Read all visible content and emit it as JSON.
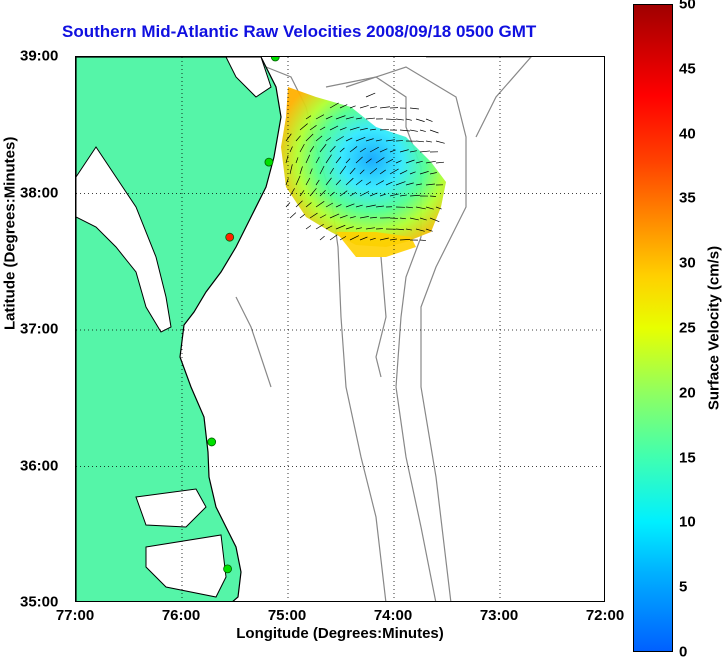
{
  "title": "Southern Mid-Atlantic Raw Velocities 2008/09/18 0500 GMT",
  "xlabel": "Longitude (Degrees:Minutes)",
  "ylabel": "Latitude (Degrees:Minutes)",
  "colorbar": {
    "label": "Surface Velocity (cm/s)",
    "ticks": [
      "0",
      "5",
      "10",
      "15",
      "20",
      "25",
      "30",
      "35",
      "40",
      "45",
      "50"
    ],
    "range": [
      0,
      50
    ]
  },
  "colors": {
    "land": "#55f5a8",
    "title": "#1010e0",
    "coast": "#000000",
    "bathymetry": "#888888",
    "station": "#00e000",
    "station_alert": "#ff2000"
  },
  "chart_data": {
    "type": "map",
    "x_ticks": [
      "77:00",
      "76:00",
      "75:00",
      "74:00",
      "73:00",
      "72:00"
    ],
    "y_ticks": [
      "39:00",
      "38:00",
      "37:00",
      "36:00",
      "35:00"
    ],
    "xlim": [
      -77,
      -72
    ],
    "ylim": [
      35,
      39
    ],
    "grid": "dotted",
    "stations": [
      {
        "lon": -75.12,
        "lat": 39.0,
        "status": "ok"
      },
      {
        "lon": -75.18,
        "lat": 38.23,
        "status": "ok"
      },
      {
        "lon": -75.55,
        "lat": 37.68,
        "status": "alert"
      },
      {
        "lon": -75.72,
        "lat": 36.18,
        "status": "ok"
      },
      {
        "lon": -75.57,
        "lat": 35.25,
        "status": "ok"
      }
    ]
  }
}
